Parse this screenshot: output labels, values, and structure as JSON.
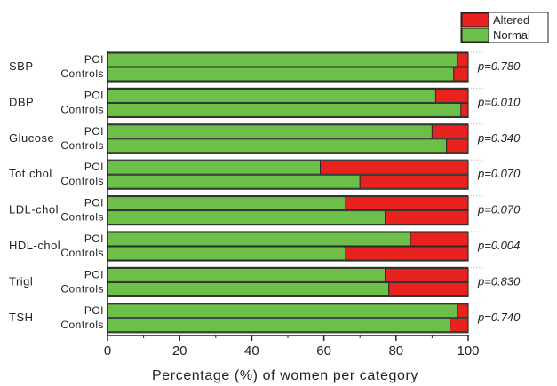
{
  "chart_data": {
    "type": "bar",
    "orientation": "horizontal",
    "stacked": true,
    "xlabel": "Percentage (%) of women per category",
    "ylabel": "",
    "title": "",
    "xlim": [
      0,
      100
    ],
    "xticks": [
      "0",
      "20",
      "40",
      "60",
      "80",
      "100"
    ],
    "grid": false,
    "legend_position": "top-right",
    "series": [
      {
        "name": "Altered",
        "color": "#e8231f"
      },
      {
        "name": "Normal",
        "color": "#6cbf48"
      }
    ],
    "categories": [
      {
        "label": "SBP",
        "p_value": "p=0.780",
        "groups": [
          {
            "label": "POI",
            "normal": 97,
            "altered": 3
          },
          {
            "label": "Controls",
            "normal": 96,
            "altered": 4
          }
        ]
      },
      {
        "label": "DBP",
        "p_value": "p=0.010",
        "groups": [
          {
            "label": "POI",
            "normal": 91,
            "altered": 9
          },
          {
            "label": "Controls",
            "normal": 98,
            "altered": 2
          }
        ]
      },
      {
        "label": "Glucose",
        "p_value": "p=0.340",
        "groups": [
          {
            "label": "POI",
            "normal": 90,
            "altered": 10
          },
          {
            "label": "Controls",
            "normal": 94,
            "altered": 6
          }
        ]
      },
      {
        "label": "Tot chol",
        "p_value": "p=0.070",
        "groups": [
          {
            "label": "POI",
            "normal": 59,
            "altered": 41
          },
          {
            "label": "Controls",
            "normal": 70,
            "altered": 30
          }
        ]
      },
      {
        "label": "LDL-chol",
        "p_value": "p=0.070",
        "groups": [
          {
            "label": "POI",
            "normal": 66,
            "altered": 34
          },
          {
            "label": "Controls",
            "normal": 77,
            "altered": 23
          }
        ]
      },
      {
        "label": "HDL-chol",
        "p_value": "p=0.004",
        "groups": [
          {
            "label": "POI",
            "normal": 84,
            "altered": 16
          },
          {
            "label": "Controls",
            "normal": 66,
            "altered": 34
          }
        ]
      },
      {
        "label": "Trigl",
        "p_value": "p=0.830",
        "groups": [
          {
            "label": "POI",
            "normal": 77,
            "altered": 23
          },
          {
            "label": "Controls",
            "normal": 78,
            "altered": 22
          }
        ]
      },
      {
        "label": "TSH",
        "p_value": "p=0.740",
        "groups": [
          {
            "label": "POI",
            "normal": 97,
            "altered": 3
          },
          {
            "label": "Controls",
            "normal": 95,
            "altered": 5
          }
        ]
      }
    ]
  }
}
